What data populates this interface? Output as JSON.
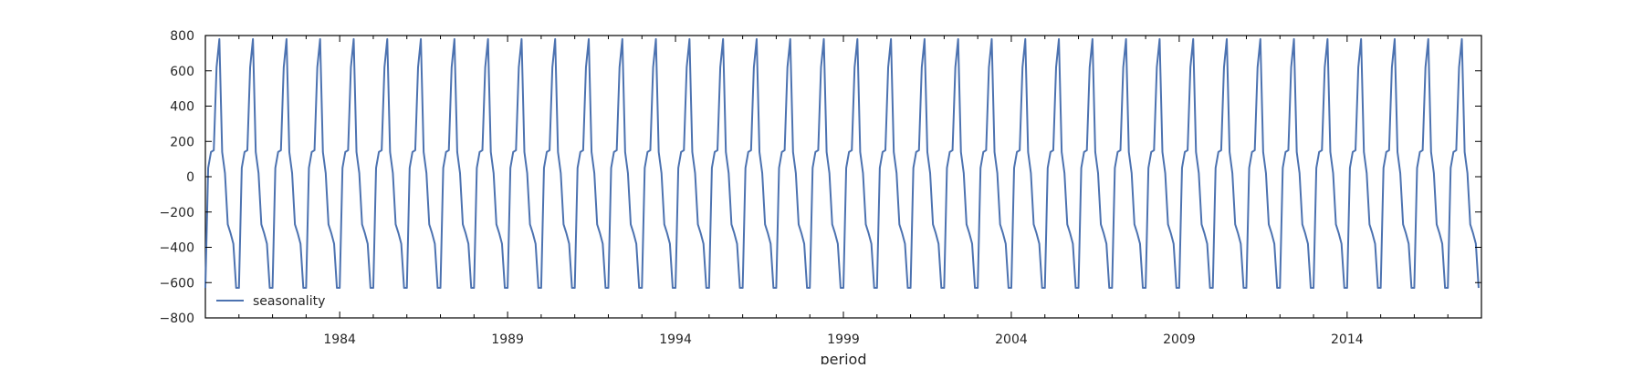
{
  "chart_data": {
    "type": "line",
    "xlabel": "period",
    "ylabel": "",
    "xlim": [
      1980.0,
      2018.0
    ],
    "ylim": [
      -800,
      800
    ],
    "yticks": [
      800,
      600,
      400,
      200,
      0,
      -200,
      -400,
      -600,
      -800
    ],
    "ytick_labels": [
      "800",
      "600",
      "400",
      "200",
      "0",
      "−200",
      "−400",
      "−600",
      "−800"
    ],
    "xticks": [
      1984,
      1989,
      1994,
      1999,
      2004,
      2009,
      2014
    ],
    "xtick_labels": [
      "1984",
      "1989",
      "1994",
      "1999",
      "2004",
      "2009",
      "2014"
    ],
    "grid": false,
    "legend_position": "lower-left",
    "series": [
      {
        "name": "seasonality",
        "color": "#4c72b0",
        "start_year": 1980,
        "end_year": 2017,
        "monthly_pattern": [
          -630,
          50,
          140,
          150,
          620,
          780,
          140,
          20,
          -270,
          -320,
          -380,
          -630
        ]
      }
    ]
  }
}
